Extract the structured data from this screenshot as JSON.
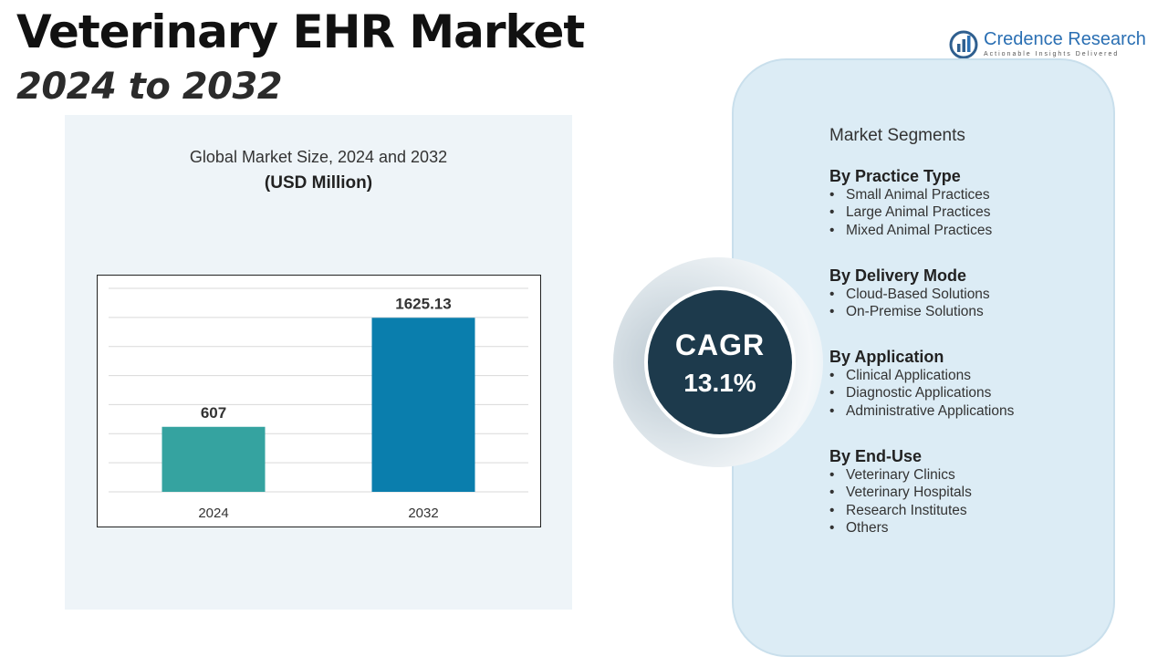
{
  "header": {
    "title": "Veterinary EHR Market",
    "subtitle": "2024 to 2032"
  },
  "logo": {
    "name_part1": "Credence",
    "name_part2": "Research",
    "tagline": "Actionable Insights Delivered"
  },
  "chart_data": {
    "type": "bar",
    "title": "Global Market Size, 2024 and 2032",
    "unit_label": "(USD Million)",
    "categories": [
      "2024",
      "2032"
    ],
    "values": [
      607,
      1625.13
    ],
    "value_labels": [
      "607",
      "1625.13"
    ],
    "colors": [
      "#35a3a0",
      "#0a7ead"
    ],
    "ylim": [
      0,
      1900
    ],
    "gridlines": 7,
    "xlabel": "",
    "ylabel": ""
  },
  "cagr": {
    "label": "CAGR",
    "value": "13.1%"
  },
  "segments": {
    "header": "Market Segments",
    "groups": [
      {
        "title": "By Practice Type",
        "items": [
          "Small Animal Practices",
          "Large Animal Practices",
          "Mixed Animal Practices"
        ]
      },
      {
        "title": "By Delivery Mode",
        "items": [
          "Cloud-Based Solutions",
          "On-Premise Solutions"
        ]
      },
      {
        "title": "By Application",
        "items": [
          "Clinical Applications",
          "Diagnostic Applications",
          "Administrative Applications"
        ]
      },
      {
        "title": "By End-Use",
        "items": [
          "Veterinary Clinics",
          "Veterinary Hospitals",
          "Research Institutes",
          "Others"
        ]
      }
    ]
  }
}
